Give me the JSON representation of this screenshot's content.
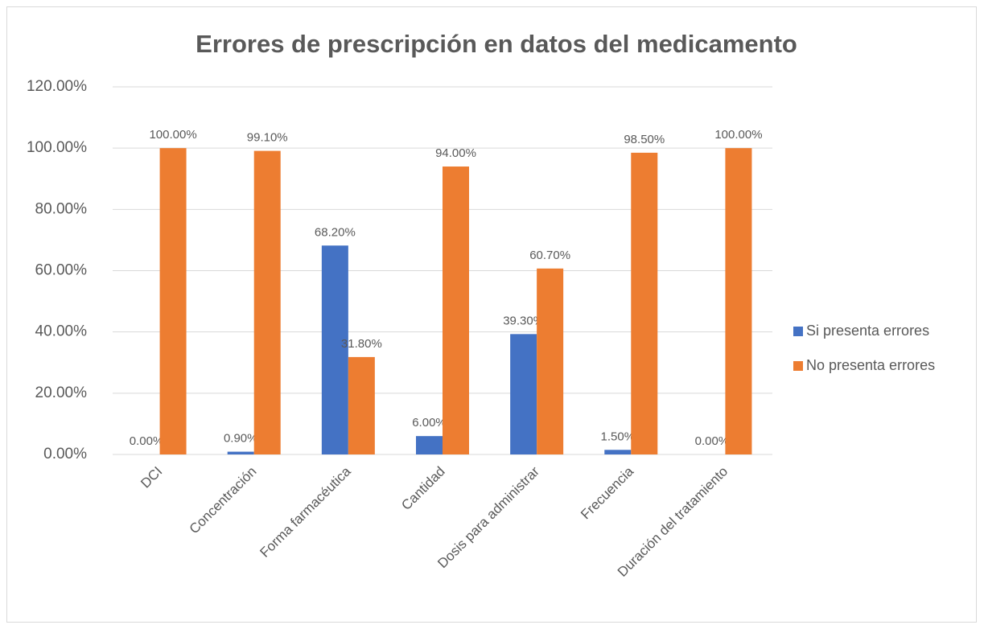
{
  "chart_data": {
    "type": "bar",
    "title": "Errores de prescripción en datos del medicamento",
    "categories": [
      "DCI",
      "Concentración",
      "Forma farmacéutica",
      "Cantidad",
      "Dosis para administrar",
      "Frecuencia",
      "Duración del tratamiento"
    ],
    "series": [
      {
        "name": "Si presenta errores",
        "color": "#4472c4",
        "values": [
          0,
          0.9,
          68.2,
          6,
          39.3,
          1.5,
          0
        ],
        "value_labels": [
          "0.00%",
          "0.90%",
          "68.20%",
          "6.00%",
          "39.30%",
          "1.50%",
          "0.00%"
        ]
      },
      {
        "name": "No presenta errores",
        "color": "#ed7d31",
        "values": [
          100,
          99.1,
          31.8,
          94,
          60.7,
          98.5,
          100
        ],
        "value_labels": [
          "100.00%",
          "99.10%",
          "31.80%",
          "94.00%",
          "60.70%",
          "98.50%",
          "100.00%"
        ]
      }
    ],
    "ylim": [
      0,
      120
    ],
    "yticks": [
      {
        "value": 0,
        "label": "0.00%"
      },
      {
        "value": 20,
        "label": "20.00%"
      },
      {
        "value": 40,
        "label": "40.00%"
      },
      {
        "value": 60,
        "label": "60.00%"
      },
      {
        "value": 80,
        "label": "80.00%"
      },
      {
        "value": 100,
        "label": "100.00%"
      },
      {
        "value": 120,
        "label": "120.00%"
      }
    ],
    "grid": true,
    "legend": "right"
  }
}
